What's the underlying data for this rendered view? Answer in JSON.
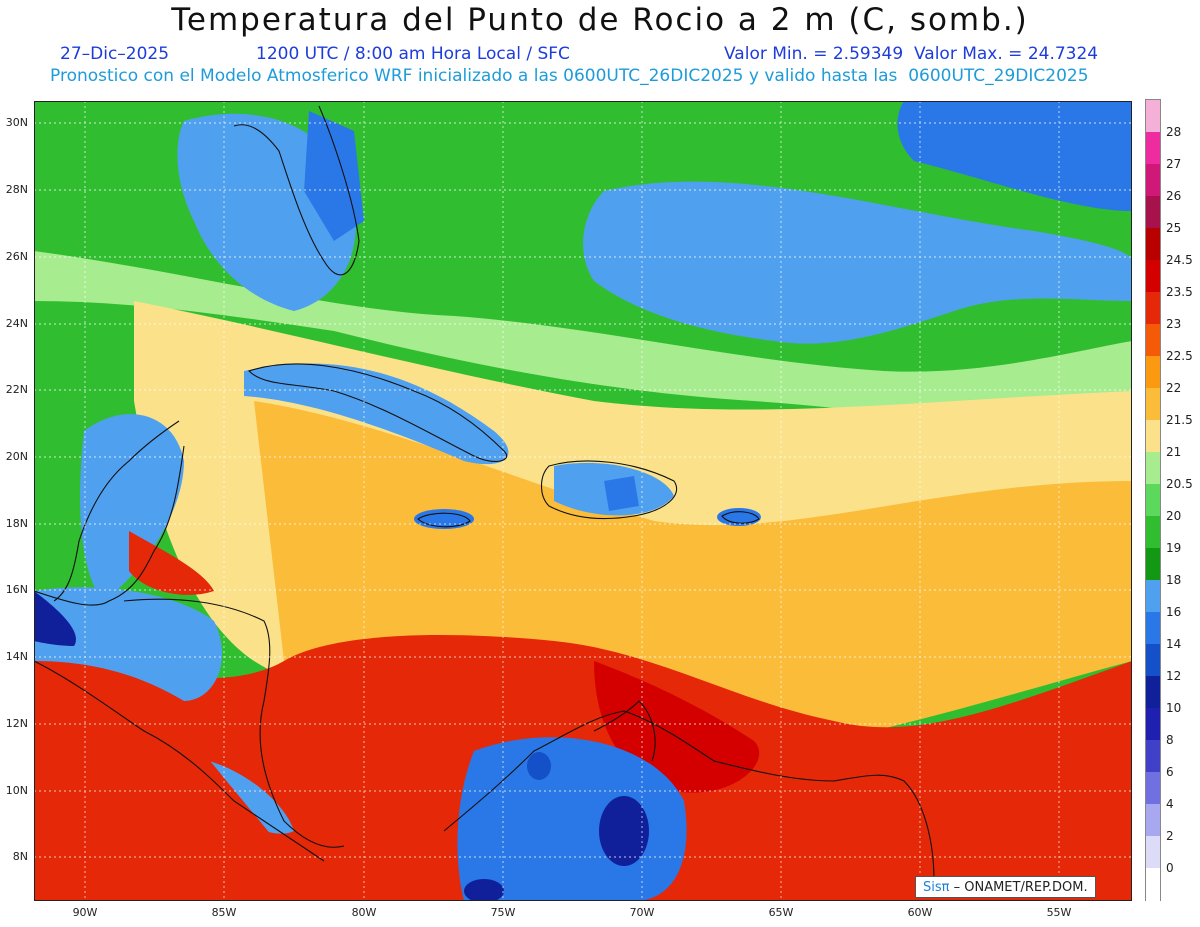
{
  "header": {
    "title": "Temperatura del Punto de Rocio a 2 m (C, somb.)",
    "date": "27–Dic–2025",
    "time": "1200 UTC / 8:00 am Hora Local / SFC",
    "values": "Valor Min. = 2.59349  Valor Max. = 24.7324",
    "model": "Pronostico con el Modelo Atmosferico WRF inicializado a las 0600UTC_26DIC2025 y valido hasta las  0600UTC_29DIC2025"
  },
  "axes": {
    "lat_labels": [
      "30N",
      "28N",
      "26N",
      "24N",
      "22N",
      "20N",
      "18N",
      "16N",
      "14N",
      "12N",
      "10N",
      "8N"
    ],
    "lon_labels": [
      "90W",
      "85W",
      "80W",
      "75W",
      "70W",
      "65W",
      "60W",
      "55W"
    ]
  },
  "colorbar": {
    "labels": [
      "28",
      "27",
      "26",
      "25",
      "24.5",
      "23.5",
      "23",
      "22.5",
      "22",
      "21.5",
      "21",
      "20.5",
      "20",
      "19",
      "18",
      "16",
      "14",
      "12",
      "10",
      "8",
      "6",
      "4",
      "2",
      "0"
    ],
    "colors": [
      "#f5b0d8",
      "#ee2ca0",
      "#d01878",
      "#a8124c",
      "#b80000",
      "#d40000",
      "#e42808",
      "#f45a08",
      "#fb9a10",
      "#fbbc3a",
      "#fbe28a",
      "#a8ec90",
      "#5cd95c",
      "#30be30",
      "#129812",
      "#50a0f0",
      "#2a78e8",
      "#1450c8",
      "#10209a",
      "#2020b0",
      "#4040c8",
      "#7070e0",
      "#a8a8f0",
      "#dcdcf8",
      "#ffffff"
    ]
  },
  "legend_scale": {
    "min_dewpoint": 2.59349,
    "max_dewpoint": 24.7324
  },
  "credit": {
    "brand": "Sisπ",
    "text": " – ONAMET/REP.DOM."
  }
}
